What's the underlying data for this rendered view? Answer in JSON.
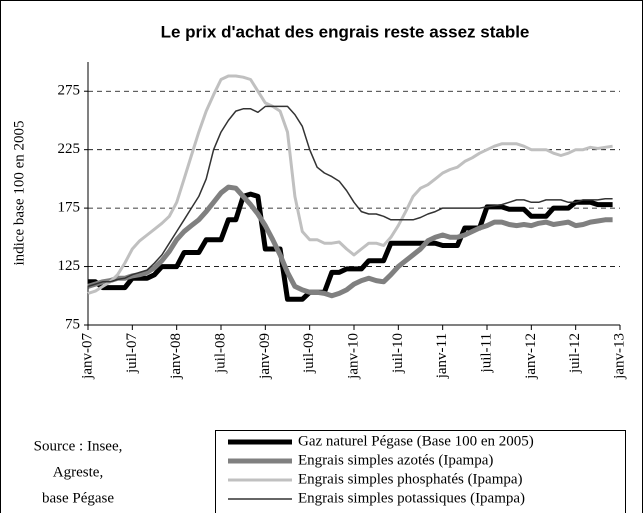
{
  "chart_data": {
    "type": "line",
    "title": "Le prix d'achat des engrais reste assez stable",
    "ylabel": "indice base 100 en 2005",
    "source": [
      "Source : Insee,",
      "Agreste,",
      "base Pégase"
    ],
    "categories": [
      "janv-07",
      null,
      null,
      null,
      null,
      null,
      "juil-07",
      null,
      null,
      null,
      null,
      null,
      "janv-08",
      null,
      null,
      null,
      null,
      null,
      "juil-08",
      null,
      null,
      null,
      null,
      null,
      "janv-09",
      null,
      null,
      null,
      null,
      null,
      "juil-09",
      null,
      null,
      null,
      null,
      null,
      "janv-10",
      null,
      null,
      null,
      null,
      null,
      "juil-10",
      null,
      null,
      null,
      null,
      null,
      "janv-11",
      null,
      null,
      null,
      null,
      null,
      "juil-11",
      null,
      null,
      null,
      null,
      null,
      "janv-12",
      null,
      null,
      null,
      null,
      null,
      "juil-12",
      null,
      null,
      null,
      null,
      null,
      "janv-13"
    ],
    "ylim": [
      75,
      300
    ],
    "yticks": [
      75,
      125,
      175,
      225,
      275
    ],
    "grid": true,
    "series": [
      {
        "name": "Gaz naturel Pégase (Base 100 en 2005)",
        "color": "#000000",
        "values": [
          112,
          112,
          107,
          107,
          107,
          107,
          115,
          115,
          115,
          118,
          125,
          125,
          125,
          137,
          137,
          137,
          148,
          148,
          148,
          165,
          165,
          185,
          187,
          185,
          140,
          140,
          140,
          97,
          97,
          97,
          103,
          103,
          103,
          120,
          120,
          123,
          123,
          123,
          130,
          130,
          130,
          145,
          145,
          145,
          145,
          145,
          145,
          145,
          143,
          143,
          143,
          158,
          158,
          158,
          176,
          176,
          176,
          174,
          174,
          174,
          168,
          168,
          168,
          175,
          175,
          175,
          180,
          180,
          180,
          178,
          178,
          178,
          null
        ]
      },
      {
        "name": "Engrais simples azotés (Ipampa)",
        "color": "#808080",
        "values": [
          108,
          110,
          112,
          113,
          115,
          115,
          117,
          118,
          120,
          124,
          130,
          138,
          148,
          155,
          160,
          165,
          172,
          180,
          188,
          193,
          192,
          185,
          178,
          170,
          160,
          148,
          135,
          120,
          108,
          105,
          103,
          103,
          102,
          100,
          102,
          105,
          110,
          113,
          115,
          113,
          112,
          118,
          125,
          130,
          135,
          140,
          147,
          150,
          152,
          150,
          150,
          152,
          155,
          158,
          160,
          163,
          163,
          161,
          160,
          161,
          160,
          162,
          163,
          161,
          162,
          163,
          160,
          161,
          163,
          164,
          165,
          165,
          null
        ]
      },
      {
        "name": "Engrais simples phosphatés (Ipampa)",
        "color": "#c0c0c0",
        "values": [
          102,
          104,
          108,
          112,
          118,
          128,
          140,
          147,
          152,
          157,
          162,
          168,
          180,
          200,
          220,
          240,
          258,
          272,
          285,
          288,
          288,
          287,
          285,
          275,
          265,
          262,
          258,
          240,
          185,
          155,
          148,
          148,
          145,
          145,
          146,
          140,
          135,
          140,
          145,
          145,
          143,
          150,
          160,
          172,
          185,
          192,
          195,
          200,
          205,
          208,
          210,
          215,
          218,
          222,
          225,
          228,
          230,
          230,
          230,
          228,
          225,
          225,
          225,
          222,
          220,
          222,
          225,
          225,
          227,
          226,
          227,
          228,
          null
        ]
      },
      {
        "name": "Engrais simples potassiques (Ipampa)",
        "color": "#333333",
        "values": [
          108,
          110,
          112,
          112,
          114,
          115,
          118,
          120,
          122,
          128,
          135,
          145,
          155,
          165,
          175,
          185,
          200,
          225,
          240,
          250,
          258,
          260,
          260,
          257,
          262,
          262,
          262,
          262,
          255,
          245,
          225,
          210,
          205,
          202,
          198,
          190,
          180,
          172,
          170,
          170,
          168,
          165,
          165,
          165,
          165,
          167,
          170,
          172,
          175,
          175,
          175,
          175,
          175,
          175,
          176,
          177,
          178,
          180,
          182,
          182,
          180,
          180,
          182,
          182,
          182,
          180,
          180,
          182,
          182,
          182,
          183,
          183,
          null
        ]
      }
    ]
  }
}
